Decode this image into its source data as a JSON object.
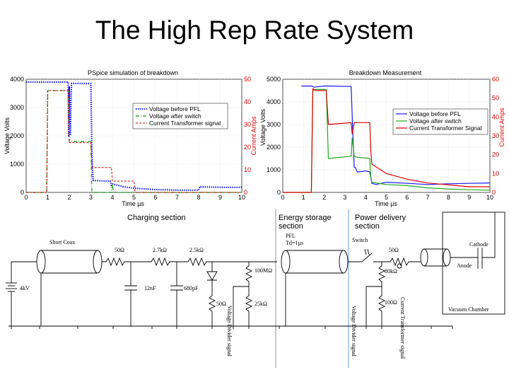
{
  "slide": {
    "title": "The High Rep Rate System"
  },
  "chart_data": [
    {
      "type": "line",
      "title": "PSpice simulation of breakdown",
      "xlabel": "Time µs",
      "ylabel": "Voltage Volts",
      "y2label": "Current Amps",
      "xlim": [
        0,
        10
      ],
      "ylim": [
        0,
        4000
      ],
      "y2lim": [
        0,
        50
      ],
      "xticks": [
        "0",
        "1",
        "2",
        "3",
        "4",
        "5",
        "6",
        "7",
        "8",
        "9",
        "10"
      ],
      "yticks": [
        "0",
        "1000",
        "2000",
        "3000",
        "4000"
      ],
      "y2ticks": [
        "0",
        "10",
        "20",
        "30",
        "40",
        "50"
      ],
      "grid": true,
      "legend_position": "right",
      "series": [
        {
          "name": "Voltage before PFL",
          "axis": "left",
          "color": "#1a1aff",
          "dash": "dots",
          "x": [
            0,
            1.95,
            1.97,
            2.0,
            2.05,
            2.1,
            3.0,
            3.05,
            3.1,
            3.9,
            3.95,
            4.0,
            4.5,
            5.0,
            6.0,
            7.0,
            8.0,
            8.05,
            9.0,
            10
          ],
          "y": [
            3900,
            3900,
            2000,
            3750,
            2050,
            3850,
            3850,
            1500,
            420,
            400,
            250,
            300,
            200,
            150,
            100,
            80,
            80,
            200,
            180,
            180
          ]
        },
        {
          "name": "Voltage after switch",
          "axis": "left",
          "color": "#33aa33",
          "dash": "dashdot",
          "x": [
            0,
            0.95,
            1.0,
            1.95,
            2.0,
            3.0,
            3.05,
            3.95,
            4.0,
            4.05,
            10
          ],
          "y": [
            0,
            0,
            3600,
            3600,
            1800,
            1800,
            0,
            0,
            300,
            0,
            0
          ]
        },
        {
          "name": "Current Transformer signal",
          "axis": "right",
          "color": "#e00000",
          "dash": "dash",
          "x": [
            0,
            0.95,
            1.0,
            1.95,
            2.0,
            3.0,
            3.05,
            3.95,
            4.0,
            5.0,
            5.05,
            10
          ],
          "y": [
            0,
            0,
            45,
            45,
            22,
            22,
            11,
            11,
            5,
            5,
            0,
            0
          ]
        }
      ]
    },
    {
      "type": "line",
      "title": "Breakdown Measurement",
      "xlabel": "Time µs",
      "ylabel": "Voltage Volts",
      "y2label": "Current Amps",
      "xlim": [
        0,
        10
      ],
      "ylim": [
        0,
        5000
      ],
      "y2lim": [
        0,
        60
      ],
      "xticks": [
        "0",
        "1",
        "2",
        "3",
        "4",
        "5",
        "6",
        "7",
        "8",
        "9",
        "10"
      ],
      "yticks": [
        "0",
        "1000",
        "2000",
        "3000",
        "4000",
        "5000"
      ],
      "y2ticks": [
        "0",
        "10",
        "20",
        "30",
        "40",
        "50",
        "60"
      ],
      "grid": true,
      "legend_position": "top-right",
      "series": [
        {
          "name": "Voltage before PFL",
          "axis": "left",
          "color": "#1a1aff",
          "dash": "solid",
          "x": [
            0.9,
            1.4,
            1.5,
            2.0,
            2.1,
            3.3,
            3.4,
            3.45,
            3.5,
            3.6,
            4.0,
            4.2,
            4.3,
            4.5,
            5.0,
            6.0,
            7.0,
            8.0,
            9.0,
            10
          ],
          "y": [
            4700,
            4700,
            4650,
            4700,
            4700,
            4680,
            2200,
            1100,
            1100,
            900,
            950,
            900,
            400,
            350,
            450,
            400,
            350,
            380,
            400,
            420
          ]
        },
        {
          "name": "Voltage after switch",
          "axis": "left",
          "color": "#22aa22",
          "dash": "solid",
          "x": [
            0,
            1.38,
            1.45,
            1.6,
            2.0,
            2.1,
            2.2,
            3.3,
            3.35,
            3.45,
            3.6,
            4.2,
            4.25,
            4.3,
            5.0,
            6.0,
            7.0,
            8.0,
            9.0,
            10
          ],
          "y": [
            0,
            0,
            4500,
            4550,
            4550,
            4550,
            1500,
            1600,
            2400,
            1600,
            1550,
            1500,
            700,
            450,
            350,
            300,
            200,
            150,
            120,
            100
          ]
        },
        {
          "name": "Current Transformer Signal",
          "axis": "right",
          "color": "#e00000",
          "dash": "solid",
          "x": [
            0,
            1.38,
            1.45,
            1.6,
            2.0,
            2.1,
            2.2,
            3.3,
            3.35,
            3.45,
            3.6,
            4.2,
            4.25,
            4.3,
            5.0,
            6.0,
            7.0,
            8.0,
            9.0,
            10
          ],
          "y": [
            0,
            0,
            55,
            54,
            54,
            54,
            36,
            37,
            31,
            37,
            37,
            37,
            22,
            15,
            10,
            7,
            5,
            4,
            3,
            3
          ]
        }
      ]
    }
  ],
  "circuit": {
    "sections": {
      "charging": "Charging section",
      "energy_storage_1": "Energy storage",
      "energy_storage_2": "section",
      "power_delivery_1": "Power delivery",
      "power_delivery_2": "section"
    },
    "labels": {
      "short_coax": "Short Coax",
      "r50_a": "50Ω",
      "r2k7": "2.7kΩ",
      "r2k5": "2.5kΩ",
      "src": "4kV",
      "c12n": "12nF",
      "c680p": "680pF",
      "r50_b": "50Ω",
      "r100m": "100MΩ",
      "r25k": "25kΩ",
      "pfl": "PFL",
      "td": "Td=1µs",
      "switch": "Switch",
      "r50_c": "50Ω",
      "r80k": "80kΩ",
      "r100": "100Ω",
      "cathode": "Cathode",
      "anode": "Anode",
      "vacuum": "Vacuum Chamber",
      "vdiv_1": "Voltage Divider signal",
      "vdiv_2": "Voltage Divider signal",
      "ct_signal": "Current Transformer signal"
    }
  }
}
